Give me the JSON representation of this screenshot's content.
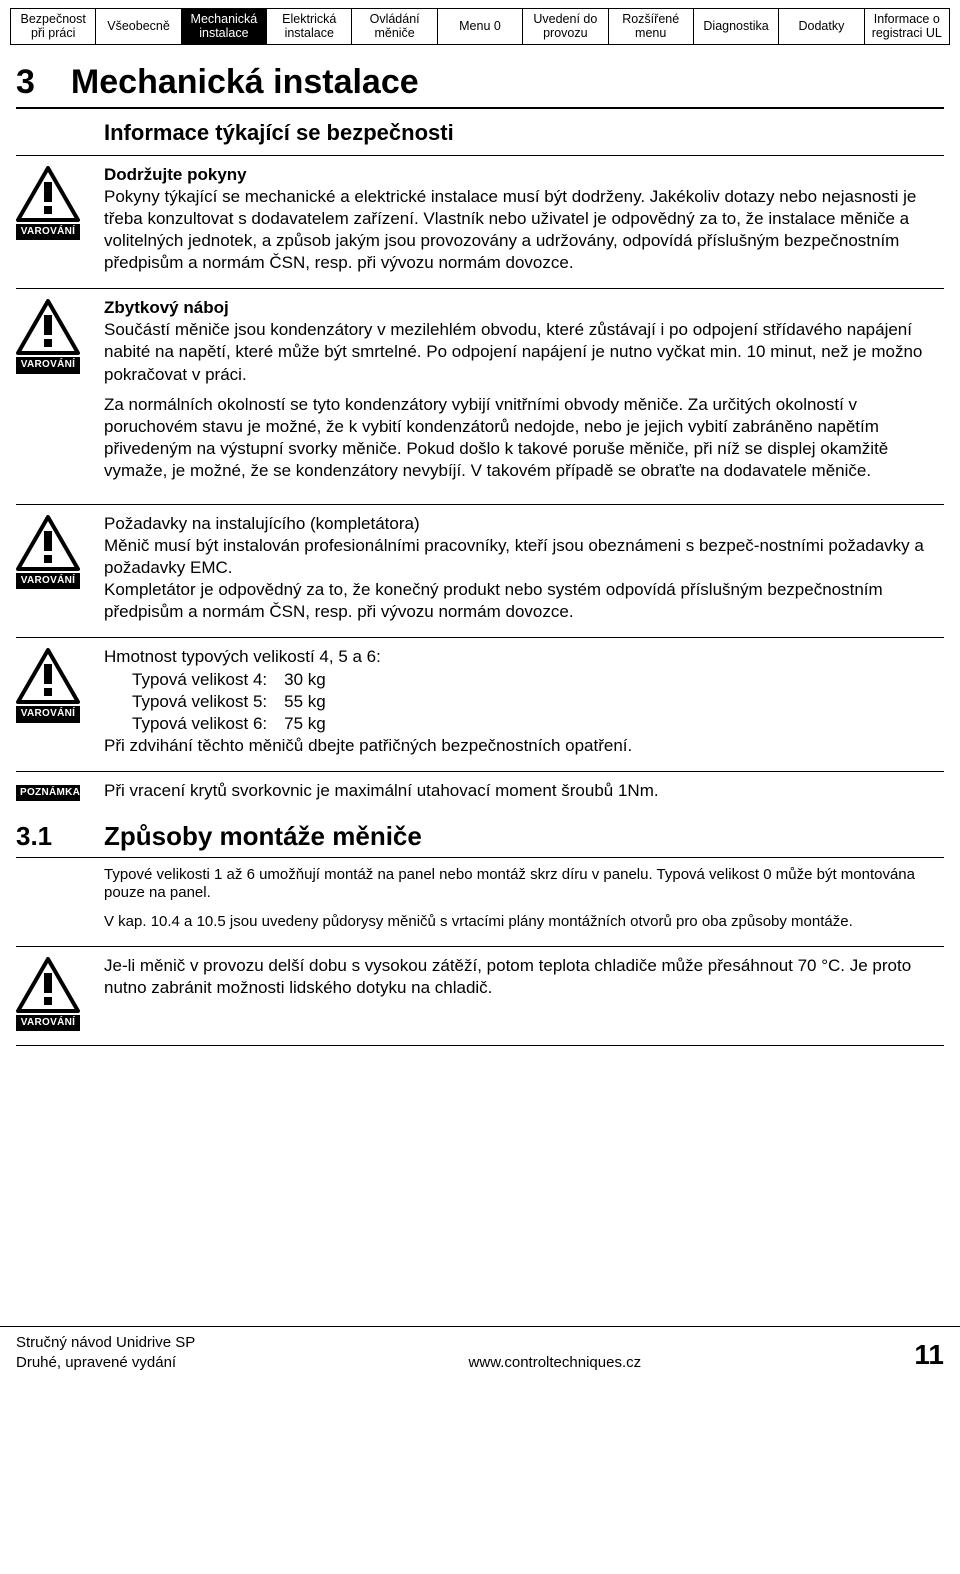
{
  "tabs": {
    "items": [
      "Bezpečnost při práci",
      "Všeobecně",
      "Mechanická instalace",
      "Elektrická instalace",
      "Ovládání měniče",
      "Menu 0",
      "Uvedení do provozu",
      "Rozšířené menu",
      "Diagnostika",
      "Dodatky",
      "Informace o registraci UL"
    ],
    "active_index": 2
  },
  "chapter": {
    "num": "3",
    "title": "Mechanická instalace"
  },
  "subtitle": "Informace týkající se bezpečnosti",
  "warn_label": "VAROVÁNÍ",
  "note_label": "POZNÁMKA",
  "block1": {
    "h": "Dodržujte pokyny",
    "p": "Pokyny týkající se mechanické a elektrické instalace musí být dodrženy. Jakékoliv dotazy nebo nejasnosti je třeba konzultovat s dodavatelem zařízení. Vlastník nebo uživatel je odpovědný za to, že instalace měniče a volitelných jednotek, a způsob jakým jsou provozovány a udržovány, odpovídá příslušným bezpečnostním předpisům a normám ČSN, resp. při vývozu normám dovozce."
  },
  "block2": {
    "h": "Zbytkový náboj",
    "p1": "Součástí měniče jsou kondenzátory v mezilehlém obvodu, které zůstávají i po odpojení střídavého napájení nabité na napětí, které může být smrtelné. Po odpojení napájení je nutno vyčkat min. 10 minut, než je možno pokračovat v práci.",
    "p2": "Za normálních okolností se tyto kondenzátory vybijí vnitřními obvody měniče. Za určitých okolností v poruchovém stavu je možné, že k vybití kondenzátorů nedojde, nebo je jejich vybití zabráněno napětím přivedeným na výstupní svorky měniče. Pokud došlo k takové poruše měniče, při níž se displej okamžitě vymaže, je možné, že se kondenzátory nevybíjí. V takovém případě se obraťte na dodavatele měniče."
  },
  "block3": {
    "l1": "Požadavky na instalujícího (kompletátora)",
    "l2": "Měnič musí být instalován profesionálními pracovníky, kteří jsou obeznámeni s bezpeč-nostními požadavky a požadavky EMC.",
    "l3": "Kompletátor je odpovědný za to, že konečný produkt nebo systém odpovídá příslušným bezpečnostním předpisům a normám ČSN, resp. při vývozu normám dovozce."
  },
  "block4": {
    "h": "Hmotnost typových velikostí 4, 5 a 6:",
    "rows": [
      {
        "label": "Typová velikost 4:",
        "val": "30 kg"
      },
      {
        "label": "Typová velikost 5:",
        "val": "55 kg"
      },
      {
        "label": "Typová velikost 6:",
        "val": "75 kg"
      }
    ],
    "tail": "Při zdvihání těchto měničů dbejte patřičných bezpečnostních opatření."
  },
  "note1": "Při vracení krytů svorkovnic je maximální utahovací moment šroubů 1Nm.",
  "section31": {
    "num": "3.1",
    "title": "Způsoby montáže měniče",
    "p1": "Typové velikosti 1 až 6 umožňují montáž na panel nebo montáž skrz díru v panelu. Typová velikost 0 může být montována pouze na panel.",
    "p2": "V kap. 10.4 a 10.5 jsou uvedeny půdorysy měničů s vrtacími plány montážních otvorů pro oba způsoby montáže."
  },
  "block5": {
    "p": "Je-li měnič v provozu delší dobu s vysokou zátěží, potom teplota chladiče může přesáhnout 70 °C. Je proto nutno zabránit možnosti lidského dotyku na chladič."
  },
  "footer": {
    "l1": "Stručný návod Unidrive SP",
    "l2": "Druhé, upravené vydání",
    "url": "www.controltechniques.cz",
    "page": "11"
  },
  "colors": {
    "text": "#000000",
    "bg": "#ffffff",
    "tab_active_bg": "#000000",
    "tab_active_color": "#ffffff"
  }
}
